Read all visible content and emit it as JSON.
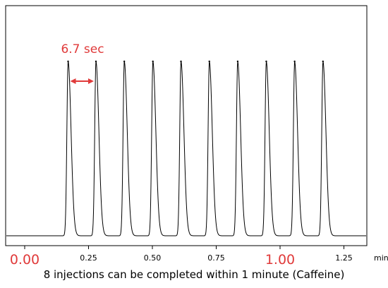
{
  "chart_data": {
    "type": "line",
    "title": "",
    "xlabel": "",
    "ylabel": "",
    "x_unit": "min",
    "xlim": [
      0.0,
      1.35
    ],
    "x_ticks": [
      {
        "value": 0.0,
        "label": "0.00",
        "emphasis": true
      },
      {
        "value": 0.25,
        "label": "0.25",
        "emphasis": false
      },
      {
        "value": 0.5,
        "label": "0.50",
        "emphasis": false
      },
      {
        "value": 0.75,
        "label": "0.75",
        "emphasis": false
      },
      {
        "value": 1.0,
        "label": "1.00",
        "emphasis": true
      },
      {
        "value": 1.25,
        "label": "1.25",
        "emphasis": false
      }
    ],
    "y_ticks": [],
    "grid": false,
    "series": [
      {
        "peaks_x": [
          0.17,
          0.279,
          0.39,
          0.502,
          0.612,
          0.723,
          0.834,
          0.946,
          1.057,
          1.168
        ],
        "baseline": 0.0,
        "peak_height": 1.0
      }
    ],
    "annotation": {
      "text": "6.7 sec",
      "arrow_from_x": 0.17,
      "arrow_to_x": 0.279
    },
    "colors": {
      "line": "#000000",
      "annotation": "#e03a3a",
      "emphasis_tick": "#e03a3a"
    }
  },
  "caption": "8 injections can be completed within 1 minute (Caffeine)"
}
